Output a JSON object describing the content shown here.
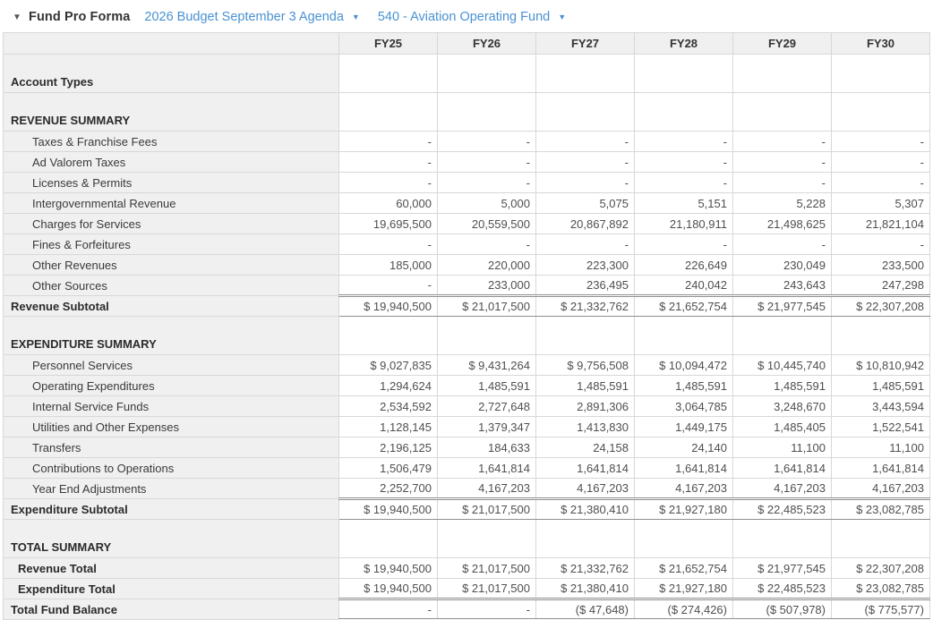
{
  "toolbar": {
    "collapse_caret": "▼",
    "title": "Fund Pro Forma",
    "budget_dropdown_label": "2026 Budget September 3 Agenda",
    "fund_dropdown_label": "540 - Aviation Operating Fund",
    "dropdown_caret": "▼"
  },
  "colors": {
    "link_blue": "#4a92d2",
    "header_gray": "#f0f0f0",
    "grid_border": "#d8d8d8",
    "rule_dark": "#8f8f8f"
  },
  "table": {
    "columns": [
      "FY25",
      "FY26",
      "FY27",
      "FY28",
      "FY29",
      "FY30"
    ],
    "rows": [
      {
        "type": "section",
        "label": "Account Types",
        "values": [
          "",
          "",
          "",
          "",
          "",
          ""
        ]
      },
      {
        "type": "section",
        "label": "REVENUE SUMMARY",
        "values": [
          "",
          "",
          "",
          "",
          "",
          ""
        ]
      },
      {
        "type": "detail",
        "label": "Taxes & Franchise Fees",
        "values": [
          "-",
          "-",
          "-",
          "-",
          "-",
          "-"
        ]
      },
      {
        "type": "detail",
        "label": "Ad Valorem Taxes",
        "values": [
          "-",
          "-",
          "-",
          "-",
          "-",
          "-"
        ]
      },
      {
        "type": "detail",
        "label": "Licenses & Permits",
        "values": [
          "-",
          "-",
          "-",
          "-",
          "-",
          "-"
        ]
      },
      {
        "type": "detail",
        "label": "Intergovernmental Revenue",
        "values": [
          "60,000",
          "5,000",
          "5,075",
          "5,151",
          "5,228",
          "5,307"
        ]
      },
      {
        "type": "detail",
        "label": "Charges for Services",
        "values": [
          "19,695,500",
          "20,559,500",
          "20,867,892",
          "21,180,911",
          "21,498,625",
          "21,821,104"
        ]
      },
      {
        "type": "detail",
        "label": "Fines & Forfeitures",
        "values": [
          "-",
          "-",
          "-",
          "-",
          "-",
          "-"
        ]
      },
      {
        "type": "detail",
        "label": "Other Revenues",
        "values": [
          "185,000",
          "220,000",
          "223,300",
          "226,649",
          "230,049",
          "233,500"
        ]
      },
      {
        "type": "detail",
        "label": "Other Sources",
        "values": [
          "-",
          "233,000",
          "236,495",
          "240,042",
          "243,643",
          "247,298"
        ]
      },
      {
        "type": "subtotal",
        "label": "Revenue Subtotal",
        "values": [
          "$ 19,940,500",
          "$ 21,017,500",
          "$ 21,332,762",
          "$ 21,652,754",
          "$ 21,977,545",
          "$ 22,307,208"
        ]
      },
      {
        "type": "section",
        "label": "EXPENDITURE SUMMARY",
        "values": [
          "",
          "",
          "",
          "",
          "",
          ""
        ]
      },
      {
        "type": "detail",
        "label": "Personnel Services",
        "values": [
          "$ 9,027,835",
          "$ 9,431,264",
          "$ 9,756,508",
          "$ 10,094,472",
          "$ 10,445,740",
          "$ 10,810,942"
        ]
      },
      {
        "type": "detail",
        "label": "Operating Expenditures",
        "values": [
          "1,294,624",
          "1,485,591",
          "1,485,591",
          "1,485,591",
          "1,485,591",
          "1,485,591"
        ]
      },
      {
        "type": "detail",
        "label": "Internal Service Funds",
        "values": [
          "2,534,592",
          "2,727,648",
          "2,891,306",
          "3,064,785",
          "3,248,670",
          "3,443,594"
        ]
      },
      {
        "type": "detail",
        "label": "Utilities and Other Expenses",
        "values": [
          "1,128,145",
          "1,379,347",
          "1,413,830",
          "1,449,175",
          "1,485,405",
          "1,522,541"
        ]
      },
      {
        "type": "detail",
        "label": "Transfers",
        "values": [
          "2,196,125",
          "184,633",
          "24,158",
          "24,140",
          "11,100",
          "11,100"
        ]
      },
      {
        "type": "detail",
        "label": "Contributions to Operations",
        "values": [
          "1,506,479",
          "1,641,814",
          "1,641,814",
          "1,641,814",
          "1,641,814",
          "1,641,814"
        ]
      },
      {
        "type": "detail",
        "label": "Year End Adjustments",
        "values": [
          "2,252,700",
          "4,167,203",
          "4,167,203",
          "4,167,203",
          "4,167,203",
          "4,167,203"
        ]
      },
      {
        "type": "subtotal",
        "label": "Expenditure Subtotal",
        "values": [
          "$ 19,940,500",
          "$ 21,017,500",
          "$ 21,380,410",
          "$ 21,927,180",
          "$ 22,485,523",
          "$ 23,082,785"
        ]
      },
      {
        "type": "section",
        "label": "TOTAL SUMMARY",
        "values": [
          "",
          "",
          "",
          "",
          "",
          ""
        ]
      },
      {
        "type": "total",
        "label": "Revenue Total",
        "values": [
          "$ 19,940,500",
          "$ 21,017,500",
          "$ 21,332,762",
          "$ 21,652,754",
          "$ 21,977,545",
          "$ 22,307,208"
        ]
      },
      {
        "type": "total",
        "label": "Expenditure Total",
        "values": [
          "$ 19,940,500",
          "$ 21,017,500",
          "$ 21,380,410",
          "$ 21,927,180",
          "$ 22,485,523",
          "$ 23,082,785"
        ]
      },
      {
        "type": "balance",
        "label": "Total Fund Balance",
        "values": [
          "-",
          "-",
          "($ 47,648)",
          "($ 274,426)",
          "($ 507,978)",
          "($ 775,577)"
        ]
      }
    ]
  }
}
